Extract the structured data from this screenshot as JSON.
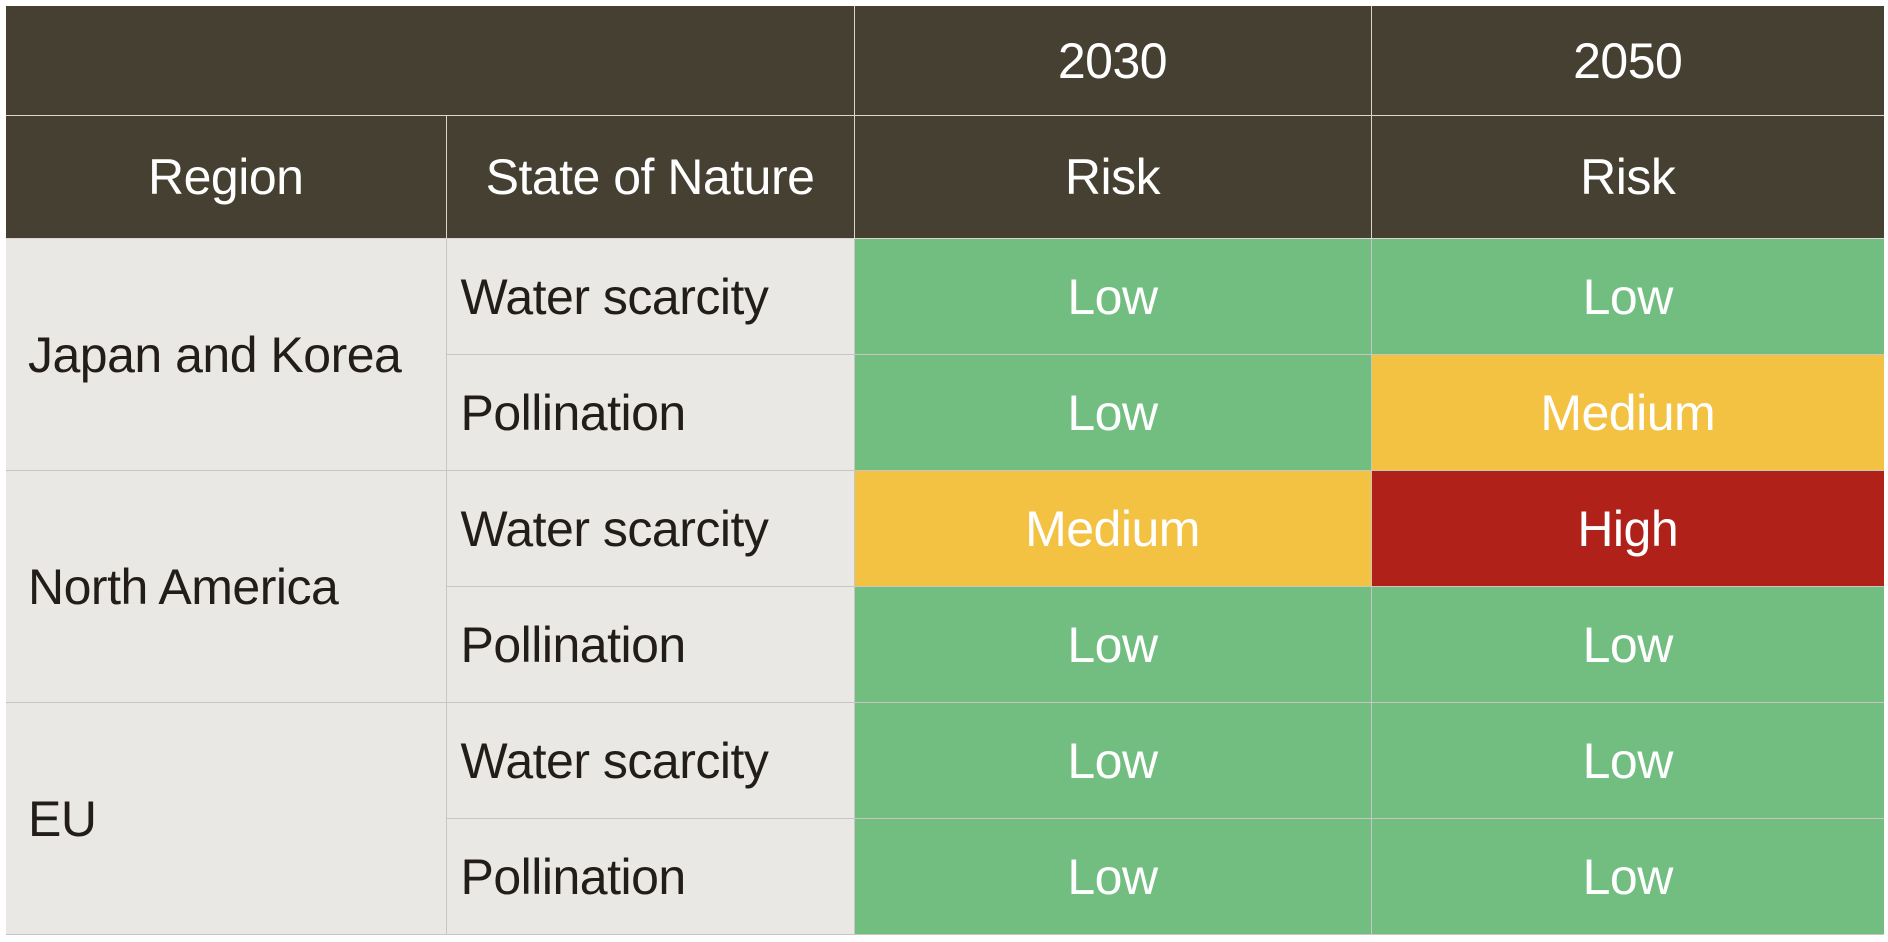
{
  "header": {
    "years": [
      "2030",
      "2050"
    ],
    "columns": [
      "Region",
      "State of Nature",
      "Risk",
      "Risk"
    ]
  },
  "colors": {
    "header": "#454032",
    "Low": "#72be80",
    "Medium": "#f4c242",
    "High": "#b02219",
    "label_bg": "#eae8e4"
  },
  "rows": [
    {
      "region": "Japan and Korea",
      "items": [
        {
          "state": "Water scarcity",
          "risk_2030": "Low",
          "risk_2050": "Low"
        },
        {
          "state": "Pollination",
          "risk_2030": "Low",
          "risk_2050": "Medium"
        }
      ]
    },
    {
      "region": "North America",
      "items": [
        {
          "state": "Water scarcity",
          "risk_2030": "Medium",
          "risk_2050": "High"
        },
        {
          "state": "Pollination",
          "risk_2030": "Low",
          "risk_2050": "Low"
        }
      ]
    },
    {
      "region": "EU",
      "items": [
        {
          "state": "Water scarcity",
          "risk_2030": "Low",
          "risk_2050": "Low"
        },
        {
          "state": "Pollination",
          "risk_2030": "Low",
          "risk_2050": "Low"
        }
      ]
    }
  ]
}
